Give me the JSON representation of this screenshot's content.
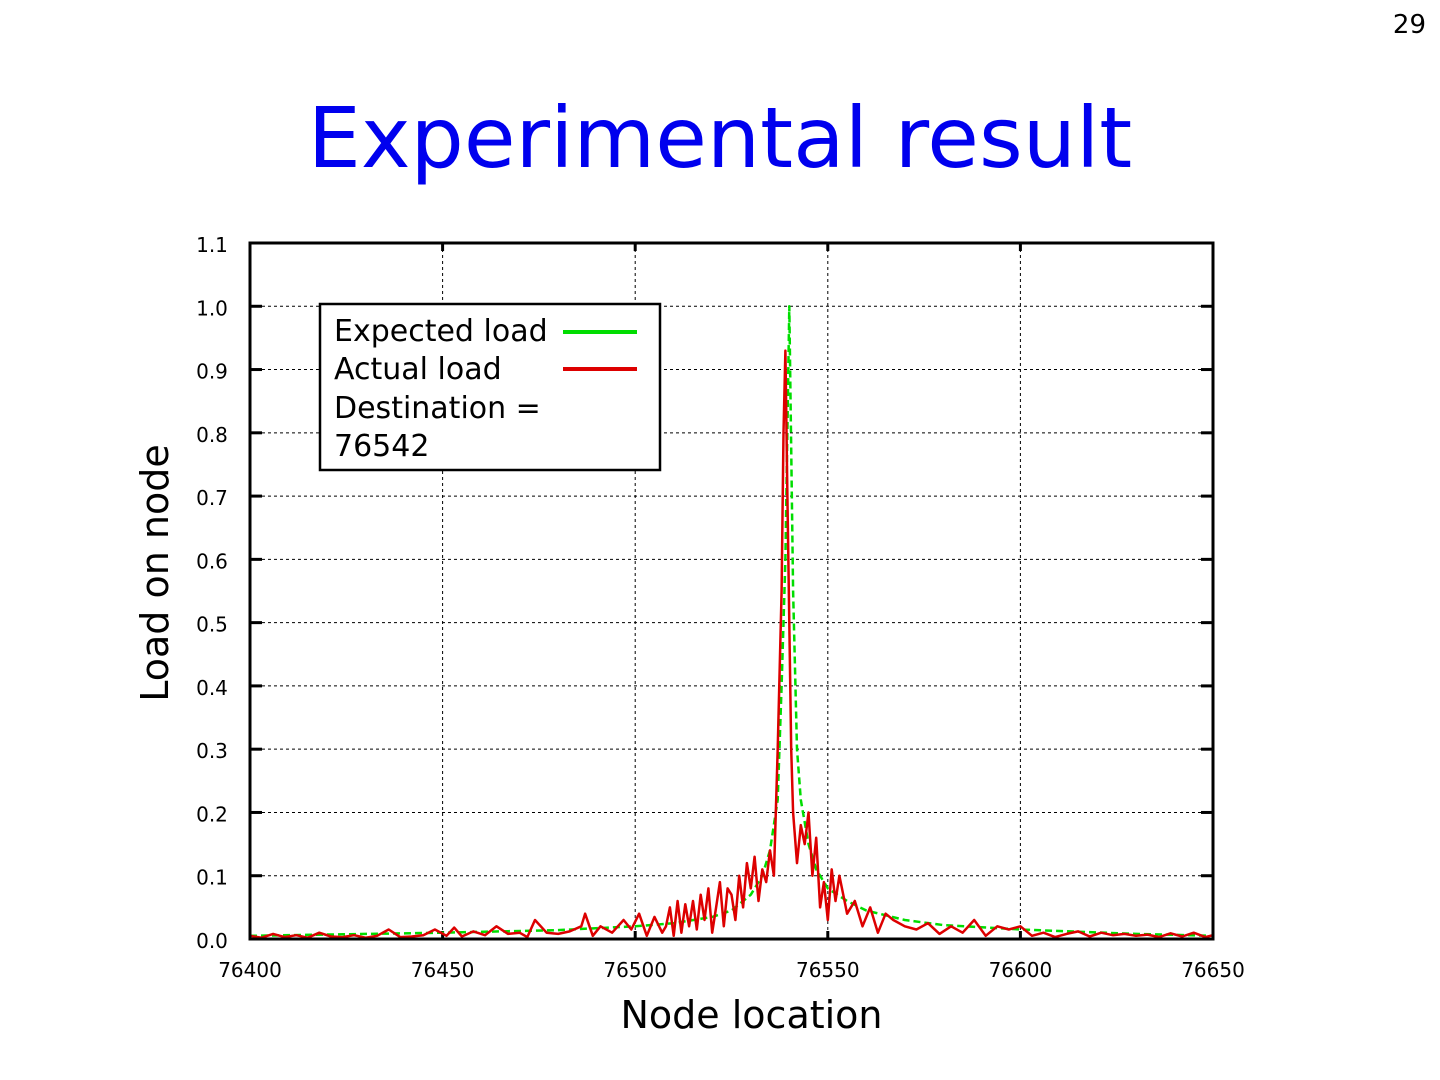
{
  "page_number": "29",
  "title": "Experimental result",
  "chart_data": {
    "type": "line",
    "xlabel": "Node location",
    "ylabel": "Load on node",
    "xlim": [
      76400,
      76650
    ],
    "ylim": [
      0.0,
      1.1
    ],
    "x_ticks": [
      "76400",
      "76450",
      "76500",
      "76550",
      "76600",
      "76650"
    ],
    "y_ticks": [
      "0.0",
      "0.1",
      "0.2",
      "0.3",
      "0.4",
      "0.5",
      "0.6",
      "0.7",
      "0.8",
      "0.9",
      "1.0",
      "1.1"
    ],
    "grid": true,
    "legend": {
      "position": "top-left",
      "entries": [
        "Expected load",
        "Actual load"
      ],
      "note_lines": [
        "Destination =",
        "76542"
      ]
    },
    "series": [
      {
        "name": "Expected load",
        "color": "#00dd00",
        "style": "dashed",
        "x": [
          76400,
          76450,
          76480,
          76500,
          76510,
          76520,
          76525,
          76530,
          76533,
          76535,
          76537,
          76538,
          76539,
          76540,
          76541,
          76542,
          76543,
          76545,
          76547,
          76550,
          76555,
          76560,
          76570,
          76580,
          76600,
          76630,
          76650
        ],
        "y": [
          0.005,
          0.01,
          0.014,
          0.02,
          0.025,
          0.035,
          0.045,
          0.07,
          0.1,
          0.14,
          0.22,
          0.4,
          0.6,
          1.0,
          0.55,
          0.3,
          0.22,
          0.15,
          0.11,
          0.08,
          0.06,
          0.045,
          0.03,
          0.022,
          0.015,
          0.008,
          0.005
        ]
      },
      {
        "name": "Actual load",
        "color": "#dd0000",
        "style": "solid",
        "x": [
          76400,
          76403,
          76406,
          76409,
          76412,
          76415,
          76418,
          76421,
          76424,
          76427,
          76430,
          76433,
          76436,
          76439,
          76442,
          76445,
          76448,
          76451,
          76453,
          76455,
          76458,
          76461,
          76464,
          76467,
          76470,
          76472,
          76474,
          76477,
          76480,
          76483,
          76486,
          76487,
          76489,
          76491,
          76494,
          76497,
          76499,
          76501,
          76503,
          76505,
          76507,
          76508,
          76509,
          76510,
          76511,
          76512,
          76513,
          76514,
          76515,
          76516,
          76517,
          76518,
          76519,
          76520,
          76521,
          76522,
          76523,
          76524,
          76525,
          76526,
          76527,
          76528,
          76529,
          76530,
          76531,
          76532,
          76533,
          76534,
          76535,
          76536,
          76537,
          76538,
          76538.5,
          76539,
          76539.5,
          76540,
          76540.5,
          76541,
          76542,
          76543,
          76544,
          76545,
          76546,
          76547,
          76548,
          76549,
          76550,
          76551,
          76552,
          76553,
          76555,
          76557,
          76559,
          76561,
          76563,
          76565,
          76567,
          76570,
          76573,
          76576,
          76579,
          76582,
          76585,
          76588,
          76591,
          76594,
          76597,
          76600,
          76603,
          76606,
          76609,
          76612,
          76615,
          76618,
          76621,
          76624,
          76627,
          76630,
          76633,
          76636,
          76639,
          76642,
          76645,
          76648,
          76650
        ],
        "y": [
          0.005,
          0.002,
          0.008,
          0.003,
          0.006,
          0.002,
          0.01,
          0.004,
          0.003,
          0.006,
          0.002,
          0.005,
          0.015,
          0.003,
          0.004,
          0.006,
          0.015,
          0.005,
          0.018,
          0.004,
          0.012,
          0.006,
          0.02,
          0.008,
          0.01,
          0.003,
          0.03,
          0.01,
          0.008,
          0.012,
          0.02,
          0.04,
          0.005,
          0.02,
          0.01,
          0.03,
          0.015,
          0.04,
          0.005,
          0.035,
          0.01,
          0.02,
          0.05,
          0.005,
          0.06,
          0.01,
          0.055,
          0.02,
          0.06,
          0.015,
          0.07,
          0.03,
          0.08,
          0.01,
          0.05,
          0.09,
          0.02,
          0.08,
          0.07,
          0.03,
          0.1,
          0.05,
          0.12,
          0.08,
          0.13,
          0.06,
          0.11,
          0.09,
          0.14,
          0.1,
          0.3,
          0.55,
          0.8,
          0.93,
          0.7,
          0.5,
          0.3,
          0.2,
          0.12,
          0.18,
          0.15,
          0.2,
          0.1,
          0.16,
          0.05,
          0.09,
          0.03,
          0.11,
          0.06,
          0.1,
          0.04,
          0.06,
          0.02,
          0.05,
          0.01,
          0.04,
          0.03,
          0.02,
          0.015,
          0.025,
          0.008,
          0.02,
          0.01,
          0.03,
          0.005,
          0.02,
          0.015,
          0.02,
          0.005,
          0.01,
          0.003,
          0.008,
          0.012,
          0.004,
          0.01,
          0.006,
          0.008,
          0.005,
          0.007,
          0.003,
          0.009,
          0.004,
          0.01,
          0.003,
          0.006
        ]
      }
    ]
  }
}
